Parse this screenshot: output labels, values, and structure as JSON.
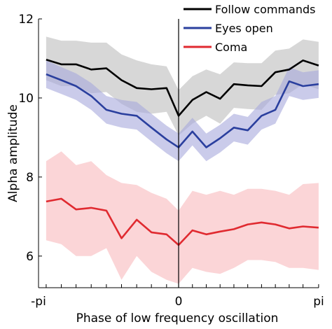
{
  "chart_data": {
    "type": "line",
    "xlabel": "Phase of low frequency oscillation",
    "ylabel": "Alpha amplitude",
    "xlim": [
      -3.14159,
      3.14159
    ],
    "ylim": [
      5.2,
      12
    ],
    "x_ticks": [
      {
        "value": -3.14159,
        "label": "-pi"
      },
      {
        "value": 0,
        "label": "0"
      },
      {
        "value": 3.14159,
        "label": "pi"
      }
    ],
    "y_ticks": [
      {
        "value": 6,
        "label": "6"
      },
      {
        "value": 8,
        "label": "8"
      },
      {
        "value": 10,
        "label": "10"
      },
      {
        "value": 12,
        "label": "12"
      }
    ],
    "zero_line": true,
    "grid": false,
    "legend_position": "top-right",
    "x": [
      -2.97,
      -2.63,
      -2.3,
      -1.96,
      -1.62,
      -1.28,
      -0.94,
      -0.61,
      -0.27,
      0.0,
      0.31,
      0.62,
      0.93,
      1.24,
      1.55,
      1.86,
      2.17,
      2.48,
      2.79,
      3.14
    ],
    "series": [
      {
        "name": "Follow commands",
        "color": "#000000",
        "band_color": "#bdbdbd",
        "values": [
          10.97,
          10.85,
          10.85,
          10.72,
          10.75,
          10.45,
          10.25,
          10.22,
          10.25,
          9.55,
          9.95,
          10.15,
          9.98,
          10.35,
          10.32,
          10.3,
          10.65,
          10.72,
          10.95,
          10.82
        ],
        "upper": [
          11.55,
          11.45,
          11.45,
          11.4,
          11.4,
          11.1,
          10.95,
          10.85,
          10.8,
          10.2,
          10.55,
          10.72,
          10.6,
          10.9,
          10.88,
          10.88,
          11.2,
          11.25,
          11.48,
          11.42
        ],
        "lower": [
          10.45,
          10.3,
          10.3,
          10.12,
          10.15,
          9.85,
          9.65,
          9.6,
          9.65,
          9.05,
          9.35,
          9.55,
          9.35,
          9.75,
          9.72,
          9.7,
          10.08,
          10.12,
          10.35,
          10.22
        ]
      },
      {
        "name": "Eyes open",
        "color": "#2a3f9e",
        "band_color": "#a7a8dc",
        "values": [
          10.6,
          10.45,
          10.3,
          10.05,
          9.7,
          9.6,
          9.55,
          9.25,
          8.95,
          8.75,
          9.15,
          8.75,
          8.98,
          9.25,
          9.18,
          9.55,
          9.7,
          10.42,
          10.3,
          10.35
        ],
        "upper": [
          10.95,
          10.78,
          10.62,
          10.38,
          10.05,
          9.95,
          9.9,
          9.6,
          9.3,
          9.1,
          9.5,
          9.1,
          9.32,
          9.6,
          9.52,
          9.9,
          10.05,
          10.78,
          10.65,
          10.7
        ],
        "lower": [
          10.25,
          10.1,
          9.95,
          9.7,
          9.35,
          9.25,
          9.2,
          8.9,
          8.6,
          8.4,
          8.8,
          8.4,
          8.62,
          8.9,
          8.82,
          9.2,
          9.35,
          10.05,
          9.95,
          10.0
        ]
      },
      {
        "name": "Coma",
        "color": "#e02a30",
        "band_color": "#f8b9bd",
        "values": [
          7.38,
          7.45,
          7.18,
          7.22,
          7.15,
          6.45,
          6.92,
          6.6,
          6.55,
          6.28,
          6.65,
          6.55,
          6.62,
          6.68,
          6.8,
          6.85,
          6.8,
          6.7,
          6.75,
          6.72
        ],
        "upper": [
          8.4,
          8.65,
          8.3,
          8.4,
          8.05,
          7.85,
          7.8,
          7.6,
          7.45,
          7.15,
          7.65,
          7.55,
          7.65,
          7.55,
          7.7,
          7.7,
          7.65,
          7.55,
          7.82,
          7.85
        ],
        "lower": [
          6.4,
          6.3,
          6.0,
          6.0,
          6.2,
          5.4,
          6.0,
          5.6,
          5.4,
          5.3,
          5.7,
          5.6,
          5.55,
          5.7,
          5.9,
          5.9,
          5.85,
          5.7,
          5.7,
          5.65
        ]
      }
    ]
  }
}
